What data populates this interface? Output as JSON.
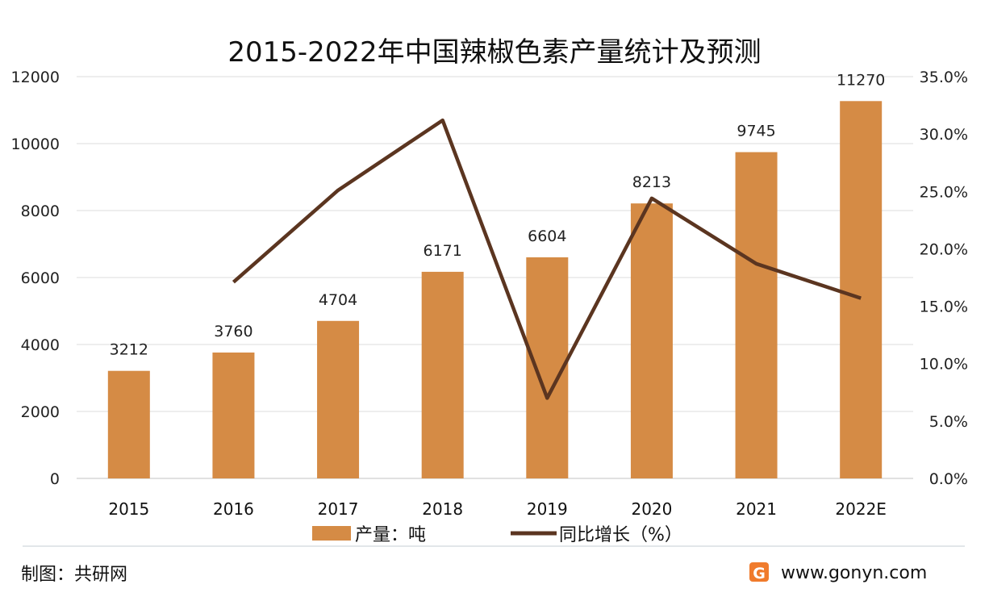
{
  "chart_data": {
    "type": "bar",
    "title": "2015-2022年中国辣椒色素产量统计及预测",
    "categories": [
      "2015",
      "2016",
      "2017",
      "2018",
      "2019",
      "2020",
      "2021",
      "2022E"
    ],
    "series": [
      {
        "name": "产量：吨",
        "type": "bar",
        "axis": "left",
        "color": "#D58B45",
        "values": [
          3212,
          3760,
          4704,
          6171,
          6604,
          8213,
          9745,
          11270
        ],
        "labels": [
          "3212",
          "3760",
          "4704",
          "6171",
          "6604",
          "8213",
          "9745",
          "11270"
        ]
      },
      {
        "name": "同比增长（%）",
        "type": "line",
        "axis": "right",
        "color": "#5B3520",
        "values": [
          null,
          17.1,
          25.1,
          31.2,
          7.0,
          24.4,
          18.7,
          15.7
        ]
      }
    ],
    "y_left": {
      "range": [
        0,
        12000
      ],
      "ticks": [
        "0",
        "2000",
        "4000",
        "6000",
        "8000",
        "10000",
        "12000"
      ]
    },
    "y_right": {
      "range": [
        0,
        35
      ],
      "ticks": [
        "0.0%",
        "5.0%",
        "10.0%",
        "15.0%",
        "20.0%",
        "25.0%",
        "30.0%",
        "35.0%"
      ]
    },
    "grid": true,
    "legend_placement": "bottom"
  },
  "footer": {
    "source": "制图：共研网",
    "website": "www.gonyn.com"
  }
}
